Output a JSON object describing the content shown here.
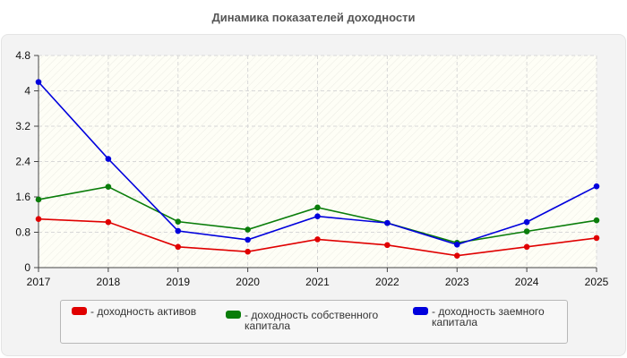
{
  "title": "Динамика показателей доходности",
  "chart_data": {
    "type": "line",
    "x": [
      "2017",
      "2018",
      "2019",
      "2020",
      "2021",
      "2022",
      "2023",
      "2024",
      "2025"
    ],
    "yticks": [
      "0",
      "0.8",
      "1.6",
      "2.4",
      "3.2",
      "4",
      "4.8"
    ],
    "ylim": [
      0,
      4.8
    ],
    "grid": true,
    "legend_position": "bottom",
    "series": [
      {
        "name": "- доходность активов",
        "color": "#e00000",
        "values": [
          1.1,
          1.03,
          0.47,
          0.36,
          0.64,
          0.51,
          0.27,
          0.47,
          0.67
        ]
      },
      {
        "name": "- доходность собственного капитала",
        "color": "#0a7d0a",
        "values": [
          1.54,
          1.83,
          1.04,
          0.86,
          1.36,
          1.01,
          0.56,
          0.82,
          1.07
        ]
      },
      {
        "name": "- доходность заемного капитала",
        "color": "#0000dd",
        "values": [
          4.2,
          2.46,
          0.83,
          0.63,
          1.16,
          1.01,
          0.52,
          1.03,
          1.84
        ]
      }
    ]
  }
}
